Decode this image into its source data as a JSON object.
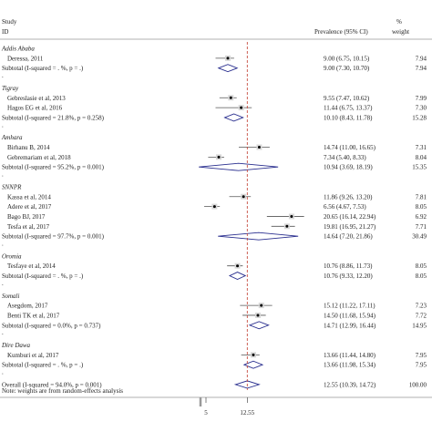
{
  "header": {
    "study_label": "Study",
    "id_label": "ID",
    "effect_label": "Prevalence (95% CI)",
    "pct_label": "%",
    "weight_label": "weight"
  },
  "footnote": "Note: weights are from random-effects analysis",
  "colors": {
    "point": "#000000",
    "diamond": "#2a2f8f",
    "ci_line": "#555555",
    "overall_line": "#c0392b",
    "rule": "#999999"
  },
  "chart_data": {
    "type": "forest",
    "x_ticks": [
      "5",
      "12.55"
    ],
    "overall_line_value": 12.55,
    "xlim": [
      4,
      24
    ],
    "rows": [
      {
        "kind": "group",
        "label": "Addis Ababa"
      },
      {
        "kind": "study",
        "label": "Deressa, 2011",
        "est": 9.0,
        "lo": 6.75,
        "hi": 10.15,
        "ci_text": "9.00 (6.75, 10.15)",
        "weight": "7.94"
      },
      {
        "kind": "subtotal",
        "label": "Subtotal (I-squared = . %, p = .)",
        "est": 9.0,
        "lo": 7.3,
        "hi": 10.7,
        "ci_text": "9.00 (7.30, 10.70)",
        "weight": "7.94"
      },
      {
        "kind": "dot",
        "label": "."
      },
      {
        "kind": "group",
        "label": "Tigray"
      },
      {
        "kind": "study",
        "label": "Gebreslasie et al, 2013",
        "est": 9.55,
        "lo": 7.47,
        "hi": 10.62,
        "ci_text": "9.55 (7.47, 10.62)",
        "weight": "7.99"
      },
      {
        "kind": "study",
        "label": "Hagos EG et al, 2016",
        "est": 11.44,
        "lo": 6.75,
        "hi": 13.37,
        "ci_text": "11.44 (6.75, 13.37)",
        "weight": "7.30"
      },
      {
        "kind": "subtotal",
        "label": "Subtotal (I-squared = 21.8%, p = 0.258)",
        "est": 10.1,
        "lo": 8.43,
        "hi": 11.78,
        "ci_text": "10.10 (8.43, 11.78)",
        "weight": "15.28"
      },
      {
        "kind": "dot",
        "label": "."
      },
      {
        "kind": "group",
        "label": "Amhara"
      },
      {
        "kind": "study",
        "label": "Birhanu B, 2014",
        "est": 14.74,
        "lo": 11.0,
        "hi": 16.65,
        "ci_text": "14.74 (11.00, 16.65)",
        "weight": "7.31"
      },
      {
        "kind": "study",
        "label": "Gebremariam et al, 2018",
        "est": 7.34,
        "lo": 5.4,
        "hi": 8.33,
        "ci_text": "7.34 (5.40, 8.33)",
        "weight": "8.04"
      },
      {
        "kind": "subtotal",
        "label": "Subtotal (I-squared = 95.2%, p = 0.001)",
        "est": 10.94,
        "lo": 3.69,
        "hi": 18.19,
        "ci_text": "10.94 (3.69, 18.19)",
        "weight": "15.35"
      },
      {
        "kind": "dot",
        "label": "."
      },
      {
        "kind": "group",
        "label": "SNNPR"
      },
      {
        "kind": "study",
        "label": "Kassa et al, 2014",
        "est": 11.86,
        "lo": 9.26,
        "hi": 13.2,
        "ci_text": "11.86 (9.26, 13.20)",
        "weight": "7.81"
      },
      {
        "kind": "study",
        "label": "Adere et al, 2017",
        "est": 6.56,
        "lo": 4.67,
        "hi": 7.53,
        "ci_text": "6.56 (4.67, 7.53)",
        "weight": "8.05"
      },
      {
        "kind": "study",
        "label": "Bago BJ, 2017",
        "est": 20.65,
        "lo": 16.14,
        "hi": 22.94,
        "ci_text": "20.65 (16.14, 22.94)",
        "weight": "6.92"
      },
      {
        "kind": "study",
        "label": "Tesfa et al, 2017",
        "est": 19.81,
        "lo": 16.95,
        "hi": 21.27,
        "ci_text": "19.81 (16.95, 21.27)",
        "weight": "7.71"
      },
      {
        "kind": "subtotal",
        "label": "Subtotal (I-squared = 97.7%, p = 0.001)",
        "est": 14.64,
        "lo": 7.2,
        "hi": 21.86,
        "ci_text": "14.64 (7.20, 21.86)",
        "weight": "30.49"
      },
      {
        "kind": "dot",
        "label": "."
      },
      {
        "kind": "group",
        "label": "Oromia"
      },
      {
        "kind": "study",
        "label": "Tesfaye et al, 2014",
        "est": 10.76,
        "lo": 8.86,
        "hi": 11.73,
        "ci_text": "10.76 (8.86, 11.73)",
        "weight": "8.05"
      },
      {
        "kind": "subtotal",
        "label": "Subtotal (I-squared = . %, p = .)",
        "est": 10.76,
        "lo": 9.33,
        "hi": 12.2,
        "ci_text": "10.76 (9.33, 12.20)",
        "weight": "8.05"
      },
      {
        "kind": "dot",
        "label": "."
      },
      {
        "kind": "group",
        "label": "Somali"
      },
      {
        "kind": "study",
        "label": "Asegdom, 2017",
        "est": 15.12,
        "lo": 11.22,
        "hi": 17.11,
        "ci_text": "15.12 (11.22, 17.11)",
        "weight": "7.23"
      },
      {
        "kind": "study",
        "label": "Benti TK et al, 2017",
        "est": 14.5,
        "lo": 11.68,
        "hi": 15.94,
        "ci_text": "14.50 (11.68, 15.94)",
        "weight": "7.72"
      },
      {
        "kind": "subtotal",
        "label": "Subtotal (I-squared = 0.0%, p = 0.737)",
        "est": 14.71,
        "lo": 12.99,
        "hi": 16.44,
        "ci_text": "14.71 (12.99, 16.44)",
        "weight": "14.95"
      },
      {
        "kind": "dot",
        "label": "."
      },
      {
        "kind": "group",
        "label": "Dire Dawa"
      },
      {
        "kind": "study",
        "label": "Kumburi et al, 2017",
        "est": 13.66,
        "lo": 11.44,
        "hi": 14.8,
        "ci_text": "13.66 (11.44, 14.80)",
        "weight": "7.95"
      },
      {
        "kind": "subtotal",
        "label": "Subtotal (I-squared = . %, p = .)",
        "est": 13.66,
        "lo": 11.98,
        "hi": 15.34,
        "ci_text": "13.66 (11.98, 15.34)",
        "weight": "7.95"
      },
      {
        "kind": "dot",
        "label": "."
      },
      {
        "kind": "overall",
        "label": "Overall (I-squared = 94.0%, p = 0.001)",
        "est": 12.55,
        "lo": 10.39,
        "hi": 14.72,
        "ci_text": "12.55 (10.39, 14.72)",
        "weight": "100.00"
      }
    ]
  }
}
